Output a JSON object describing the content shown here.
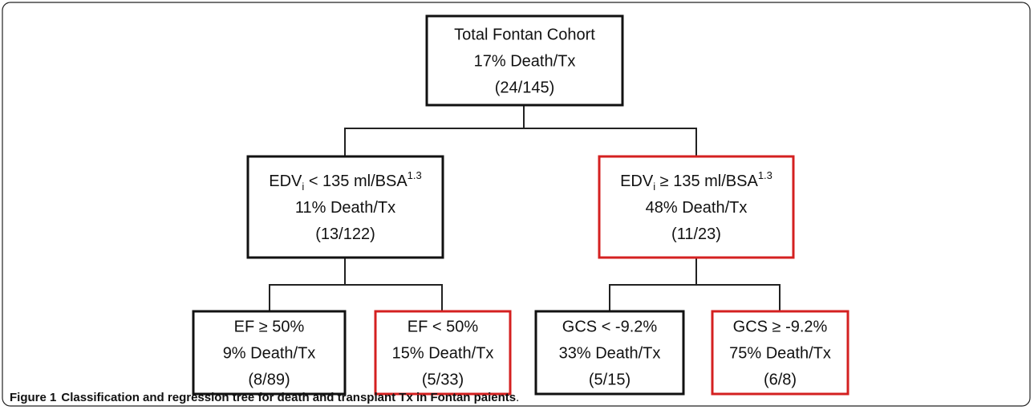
{
  "nodes": [
    {
      "lines": [
        "Total Fontan Cohort",
        "17% Death/Tx",
        "(24/145)"
      ]
    },
    {
      "lines": [
        {
          "base": "EDV",
          "sub": "i",
          "text": " < 135 ml/BSA",
          "sup": "1.3"
        },
        "11% Death/Tx",
        "(13/122)"
      ]
    },
    {
      "lines": [
        {
          "base": "EDV",
          "sub": "i",
          "text": " ≥ 135 ml/BSA",
          "sup": "1.3"
        },
        "48% Death/Tx",
        "(11/23)"
      ]
    },
    {
      "lines": [
        "EF ≥ 50%",
        "9% Death/Tx",
        "(8/89)"
      ]
    },
    {
      "lines": [
        "EF < 50%",
        "15% Death/Tx",
        "(5/33)"
      ]
    },
    {
      "lines": [
        "GCS < -9.2%",
        "33% Death/Tx",
        "(5/15)"
      ]
    },
    {
      "lines": [
        "GCS ≥ -9.2%",
        "75% Death/Tx",
        "(6/8)"
      ]
    }
  ],
  "caption": {
    "label": "Figure 1",
    "text": "Classification and regression tree for death and transplant Tx in Fontan paients",
    "end": "."
  }
}
